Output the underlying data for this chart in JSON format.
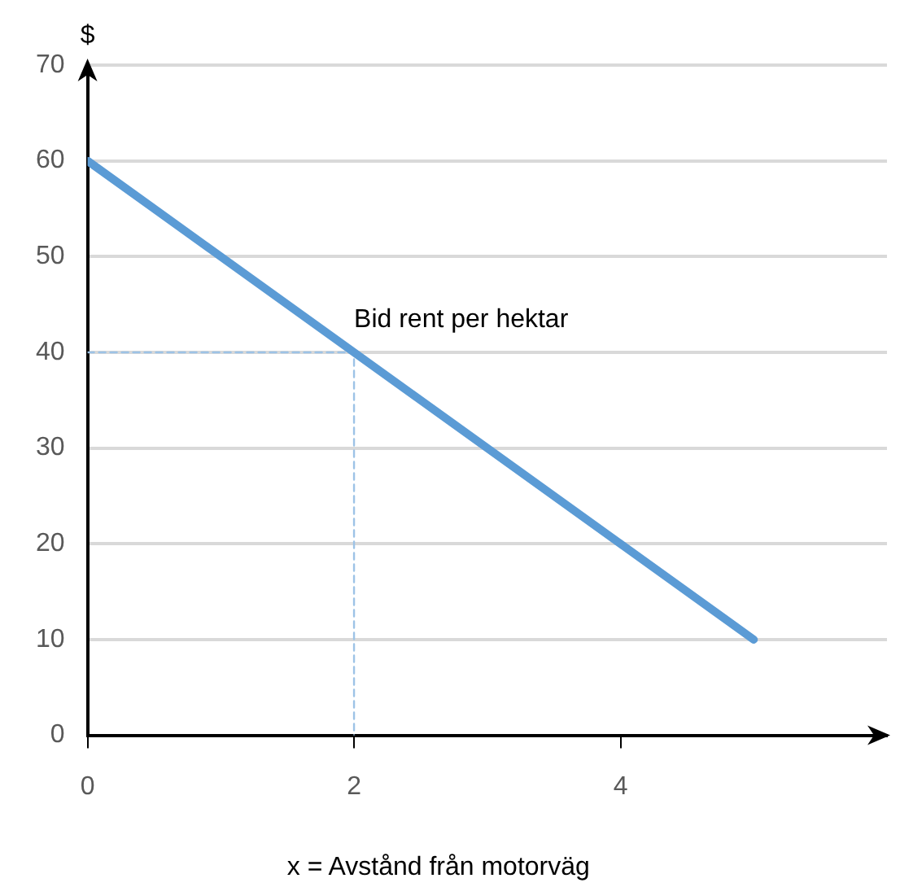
{
  "chart_data": {
    "type": "line",
    "xlabel": "x = Avstånd från motorväg",
    "ylabel": "$",
    "series": [
      {
        "color": "#5b9bd5",
        "x": [
          0,
          5
        ],
        "values": [
          60,
          10
        ]
      },
      {
        "color": "#9dc3e6",
        "x": [
          0,
          2,
          2
        ],
        "values": [
          40,
          40,
          0
        ],
        "line_style": "dashed"
      }
    ],
    "xlim": [
      0,
      6
    ],
    "xticks": [
      0,
      2,
      4
    ],
    "ylim": [
      0,
      70
    ],
    "yticks": [
      0,
      10,
      20,
      30,
      40,
      50,
      60,
      70
    ],
    "grid": "y",
    "legend": false,
    "marker": "none",
    "annotations": [
      {
        "text": "Bid rent per hektar",
        "x": 2,
        "y": 40
      }
    ]
  }
}
